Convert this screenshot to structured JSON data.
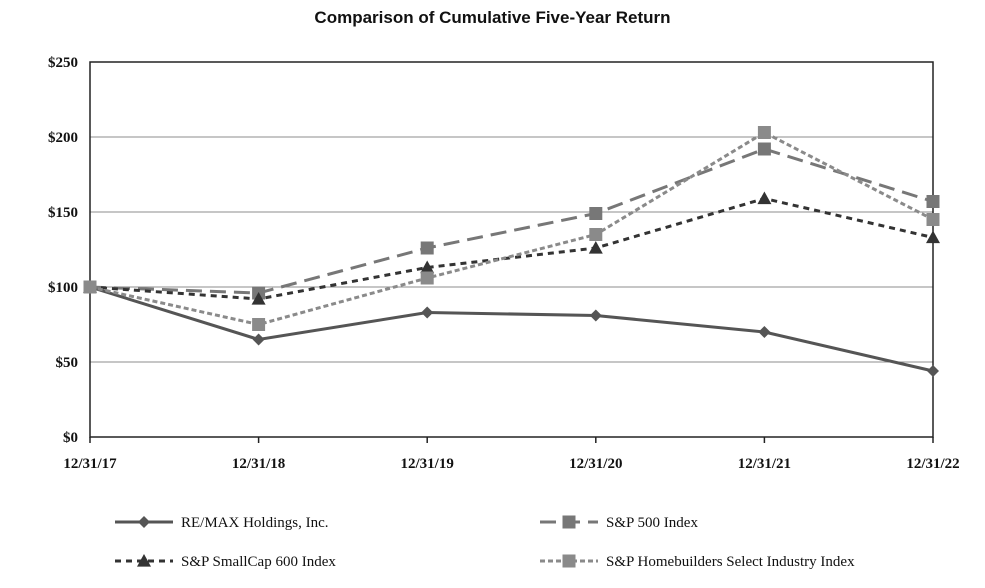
{
  "chart_data": {
    "type": "line",
    "title": "Comparison of Cumulative Five-Year Return",
    "xlabel": "",
    "ylabel": "",
    "categories": [
      "12/31/17",
      "12/31/18",
      "12/31/19",
      "12/31/20",
      "12/31/21",
      "12/31/22"
    ],
    "ylim": [
      0,
      250
    ],
    "yticks": [
      0,
      50,
      100,
      150,
      200,
      250
    ],
    "ytick_labels": [
      "$0",
      "$50",
      "$100",
      "$150",
      "$200",
      "$250"
    ],
    "grid": true,
    "legend_position": "bottom",
    "series": [
      {
        "name": "RE/MAX Holdings, Inc.",
        "values": [
          100,
          65,
          83,
          81,
          70,
          44
        ],
        "marker": "diamond",
        "dash": "solid",
        "color": "#555555"
      },
      {
        "name": "S&P 500 Index",
        "values": [
          100,
          96,
          126,
          149,
          192,
          157
        ],
        "marker": "square",
        "dash": "longdash",
        "color": "#777777"
      },
      {
        "name": "S&P SmallCap 600 Index",
        "values": [
          100,
          92,
          113,
          126,
          159,
          133
        ],
        "marker": "triangle",
        "dash": "shortdash",
        "color": "#333333"
      },
      {
        "name": "S&P Homebuilders Select Industry Index",
        "values": [
          100,
          75,
          106,
          135,
          203,
          145
        ],
        "marker": "square",
        "dash": "dot",
        "color": "#8a8a8a"
      }
    ]
  }
}
